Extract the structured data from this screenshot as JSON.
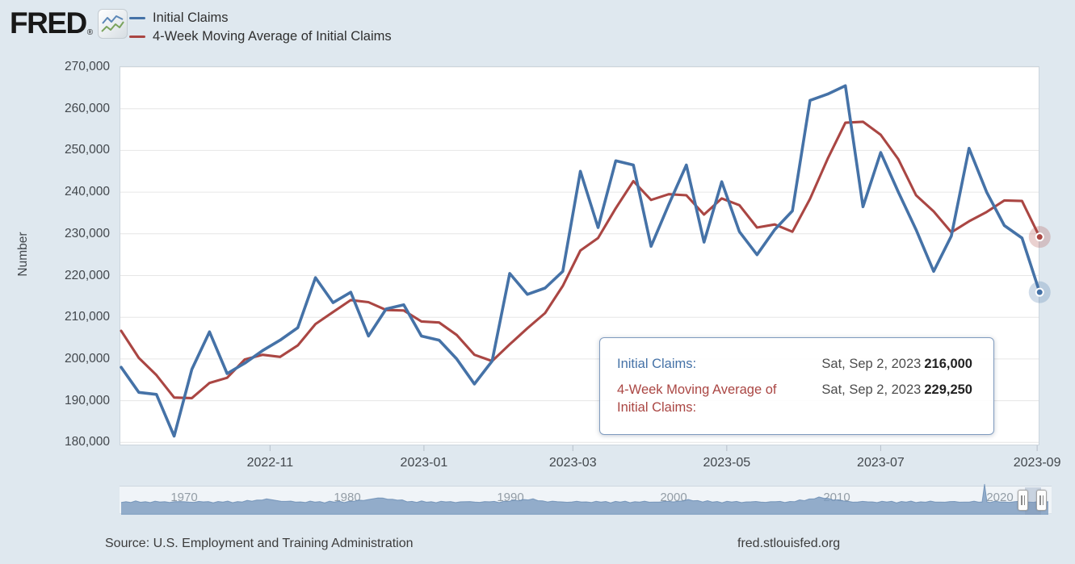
{
  "header": {
    "logo_text": "FRED",
    "registered_mark": "®",
    "legend": [
      {
        "label": "Initial Claims",
        "color": "#4572a7"
      },
      {
        "label": "4-Week Moving Average of Initial Claims",
        "color": "#aa4643"
      }
    ]
  },
  "chart_data": {
    "type": "line",
    "title": "",
    "xlabel": "",
    "ylabel": "Number",
    "ylim": [
      180000,
      270000
    ],
    "ytick_step": 10000,
    "ytick_labels": [
      "270,000",
      "260,000",
      "250,000",
      "240,000",
      "230,000",
      "220,000",
      "210,000",
      "200,000",
      "190,000",
      "180,000"
    ],
    "xticks": [
      {
        "label": "2022-11",
        "date": "2022-11-01"
      },
      {
        "label": "2023-01",
        "date": "2023-01-01"
      },
      {
        "label": "2023-03",
        "date": "2023-03-01"
      },
      {
        "label": "2023-05",
        "date": "2023-05-01"
      },
      {
        "label": "2023-07",
        "date": "2023-07-01"
      },
      {
        "label": "2023-09",
        "date": "2023-09-01"
      }
    ],
    "frequency": "weekly",
    "grid": true,
    "legend_position": "top-left",
    "dates": [
      "2022-09-03",
      "2022-09-10",
      "2022-09-17",
      "2022-09-24",
      "2022-10-01",
      "2022-10-08",
      "2022-10-15",
      "2022-10-22",
      "2022-10-29",
      "2022-11-05",
      "2022-11-12",
      "2022-11-19",
      "2022-11-26",
      "2022-12-03",
      "2022-12-10",
      "2022-12-17",
      "2022-12-24",
      "2022-12-31",
      "2023-01-07",
      "2023-01-14",
      "2023-01-21",
      "2023-01-28",
      "2023-02-04",
      "2023-02-11",
      "2023-02-18",
      "2023-02-25",
      "2023-03-04",
      "2023-03-11",
      "2023-03-18",
      "2023-03-25",
      "2023-04-01",
      "2023-04-08",
      "2023-04-15",
      "2023-04-22",
      "2023-04-29",
      "2023-05-06",
      "2023-05-13",
      "2023-05-20",
      "2023-05-27",
      "2023-06-03",
      "2023-06-10",
      "2023-06-17",
      "2023-06-24",
      "2023-07-01",
      "2023-07-08",
      "2023-07-15",
      "2023-07-22",
      "2023-07-29",
      "2023-08-05",
      "2023-08-12",
      "2023-08-19",
      "2023-08-26",
      "2023-09-02"
    ],
    "series": [
      {
        "name": "Initial Claims",
        "color": "#4572a7",
        "values": [
          198000,
          192000,
          191500,
          181500,
          197500,
          206500,
          196500,
          199000,
          202000,
          204500,
          207500,
          219500,
          213500,
          216000,
          205500,
          212000,
          213000,
          205500,
          204500,
          200000,
          194000,
          199500,
          220500,
          215500,
          217000,
          221000,
          245000,
          231500,
          247500,
          246500,
          227000,
          237000,
          246500,
          228000,
          242500,
          230500,
          225000,
          231000,
          235500,
          262000,
          263500,
          265500,
          236500,
          249500,
          240000,
          231000,
          221000,
          229500,
          250500,
          240000,
          232000,
          229000,
          216000
        ]
      },
      {
        "name": "4-Week Moving Average of Initial Claims",
        "color": "#aa4643",
        "values": [
          206750,
          200250,
          196125,
          190750,
          190625,
          194250,
          195500,
          199875,
          201000,
          200500,
          203250,
          208375,
          211250,
          214125,
          213625,
          211750,
          211625,
          209000,
          208750,
          205750,
          201000,
          199500,
          203500,
          207375,
          211000,
          217500,
          226000,
          229000,
          236125,
          242625,
          238125,
          239500,
          239250,
          234625,
          238500,
          236875,
          231500,
          232250,
          230500,
          238375,
          248000,
          256625,
          256875,
          253750,
          247875,
          239250,
          235375,
          230375,
          233000,
          235250,
          238000,
          237875,
          229250
        ]
      }
    ],
    "end_markers": [
      {
        "series": "Initial Claims",
        "date": "2023-09-02",
        "value": 216000
      },
      {
        "series": "4-Week Moving Average of Initial Claims",
        "date": "2023-09-02",
        "value": 229250
      }
    ]
  },
  "tooltip": {
    "rows": [
      {
        "label": "Initial Claims:",
        "color": "#4572a7",
        "date": "Sat, Sep 2, 2023",
        "value": "216,000"
      },
      {
        "label": "4-Week Moving Average of Initial Claims:",
        "color": "#aa4643",
        "date": "Sat, Sep 2, 2023",
        "value": "229,250"
      }
    ]
  },
  "slider": {
    "years": [
      "1970",
      "1980",
      "1990",
      "2000",
      "2010",
      "2020"
    ]
  },
  "footer": {
    "source": "Source: U.S. Employment and Training Administration",
    "site": "fred.stlouisfed.org"
  }
}
